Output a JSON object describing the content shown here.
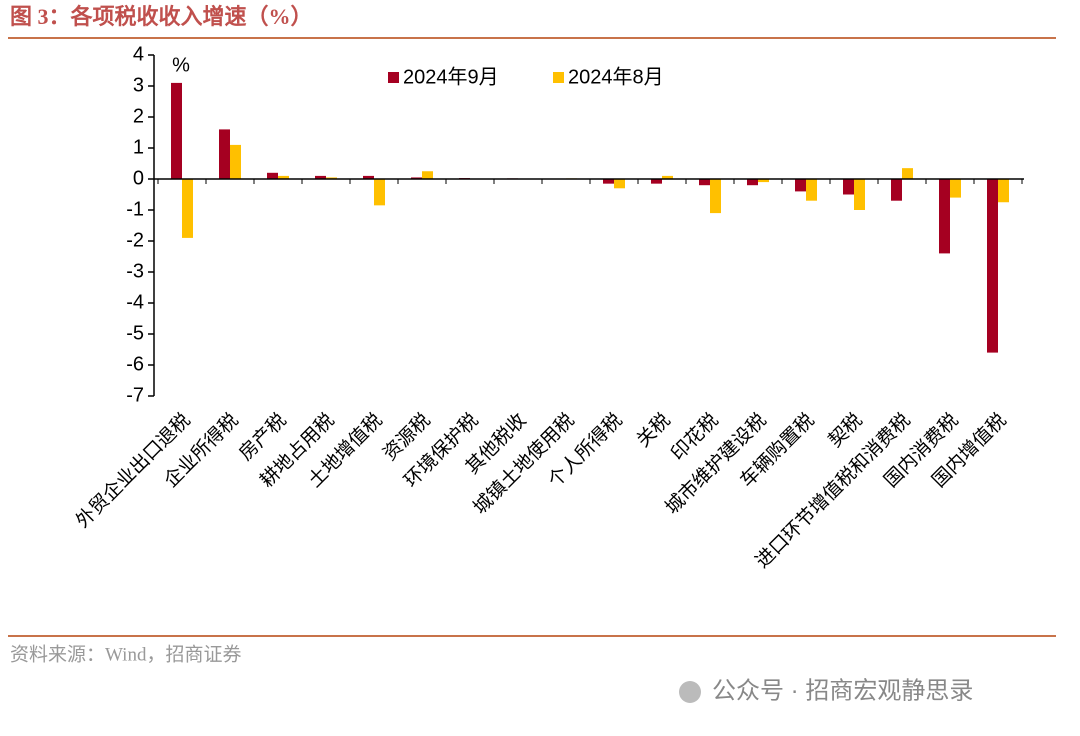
{
  "chart_data": {
    "type": "bar",
    "title": "图 3：各项税收收入增速（%）",
    "y_unit": "%",
    "categories": [
      "外贸企业出口退税",
      "企业所得税",
      "房产税",
      "耕地占用税",
      "土地增值税",
      "资源税",
      "环境保护税",
      "其他税收",
      "城镇土地使用税",
      "个人所得税",
      "关税",
      "印花税",
      "城市维护建设税",
      "车辆购置税",
      "契税",
      "进口环节增值税和消费税",
      "国内消费税",
      "国内增值税"
    ],
    "series": [
      {
        "name": "2024年9月",
        "color": "#a50021",
        "values": [
          3.1,
          1.6,
          0.2,
          0.1,
          0.1,
          0.05,
          0.03,
          0.02,
          0.0,
          -0.15,
          -0.15,
          -0.2,
          -0.2,
          -0.4,
          -0.5,
          -0.7,
          -2.4,
          -5.6
        ]
      },
      {
        "name": "2024年8月",
        "color": "#ffc000",
        "values": [
          -1.9,
          1.1,
          0.1,
          0.05,
          -0.85,
          0.25,
          0.0,
          0.0,
          0.02,
          -0.3,
          0.1,
          -1.1,
          -0.1,
          -0.7,
          -1.0,
          0.35,
          -0.6,
          -0.75
        ]
      }
    ],
    "ylim": [
      -7,
      4
    ],
    "yticks": [
      -7,
      -6,
      -5,
      -4,
      -3,
      -2,
      -1,
      0,
      1,
      2,
      3,
      4
    ],
    "legend": "top-center",
    "source": "资料来源：Wind，招商证券",
    "watermark": "公众号 · 招商宏观静思录"
  }
}
